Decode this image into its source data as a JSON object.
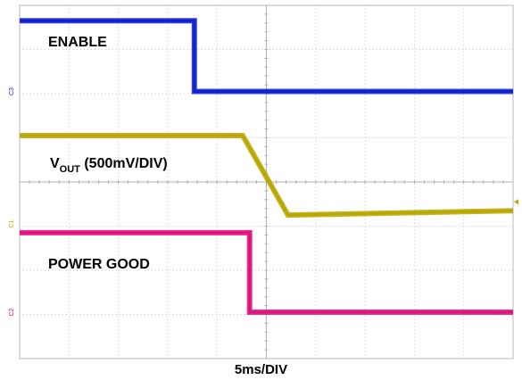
{
  "chart_data": {
    "type": "line",
    "x_unit": "ms",
    "x_range": [
      0,
      50
    ],
    "y_range_div": [
      -4,
      4
    ],
    "grid": true,
    "xlabel": "5ms/DIV",
    "series": [
      {
        "id": "enable",
        "name": "ENABLE",
        "color": "#1020d0",
        "marker": "C3",
        "marker_color": "#1020d0",
        "x": [
          0,
          17.7,
          17.7,
          50
        ],
        "y": [
          3.65,
          3.65,
          2.05,
          2.05
        ]
      },
      {
        "id": "vout",
        "name": "VOUT (500mV/DIV)",
        "name_main": "V",
        "name_sub": "OUT",
        "name_rest": " (500mV/DIV)",
        "color": "#b8a800",
        "marker": "C1",
        "marker_color": "#b8a800",
        "x": [
          0,
          22.6,
          27.2,
          50
        ],
        "y": [
          1.05,
          1.05,
          -0.75,
          -0.65
        ]
      },
      {
        "id": "pgood",
        "name": "POWER GOOD",
        "color": "#e0107c",
        "marker": "C2",
        "marker_color": "#c81080",
        "x": [
          0,
          23.3,
          23.3,
          50
        ],
        "y": [
          -1.15,
          -1.15,
          -2.95,
          -2.95
        ]
      }
    ],
    "trigger_marker_color": "#b8a800"
  }
}
